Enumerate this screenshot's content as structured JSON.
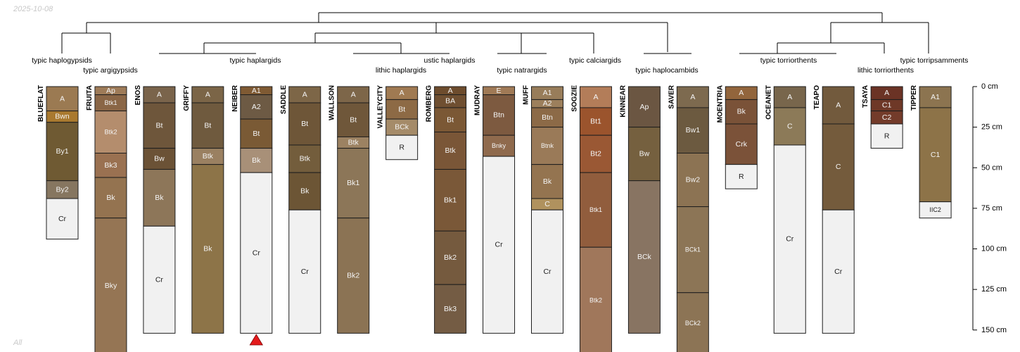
{
  "header": {
    "date": "2025-10-08",
    "footer_label": "All"
  },
  "chart_data": {
    "type": "soil-profile-sketch",
    "depth_unit": "cm",
    "y_ticks": [
      {
        "value": 0,
        "label": "0 cm"
      },
      {
        "value": 25,
        "label": "25 cm"
      },
      {
        "value": 50,
        "label": "50 cm"
      },
      {
        "value": 75,
        "label": "75 cm"
      },
      {
        "value": 100,
        "label": "100 cm"
      },
      {
        "value": 125,
        "label": "125 cm"
      },
      {
        "value": 150,
        "label": "150 cm"
      }
    ],
    "groups": [
      {
        "label": "typic haplogypsids"
      },
      {
        "label": "typic argigypsids"
      },
      {
        "label": "typic haplargids"
      },
      {
        "label": "lithic haplargids"
      },
      {
        "label": "ustic haplargids"
      },
      {
        "label": "typic natrargids"
      },
      {
        "label": "typic calciargids"
      },
      {
        "label": "typic haplocambids"
      },
      {
        "label": "typic torriorthents"
      },
      {
        "label": "lithic torriorthents"
      },
      {
        "label": "typic torripsamments"
      }
    ],
    "profiles": [
      {
        "name": "BLUEFLAT",
        "horizons": [
          {
            "name": "A",
            "top": 0,
            "bottom": 15,
            "color": "#9b7a52"
          },
          {
            "name": "Bwn",
            "top": 15,
            "bottom": 22,
            "color": "#a9792f"
          },
          {
            "name": "By1",
            "top": 22,
            "bottom": 58,
            "color": "#6f5a33"
          },
          {
            "name": "By2",
            "top": 58,
            "bottom": 69,
            "color": "#867660"
          },
          {
            "name": "Cr",
            "top": 69,
            "bottom": 94,
            "color": "#f1f1f1"
          }
        ]
      },
      {
        "name": "FRUITA",
        "horizons": [
          {
            "name": "Ap",
            "top": 0,
            "bottom": 5,
            "color": "#9e7b58"
          },
          {
            "name": "Btk1",
            "top": 5,
            "bottom": 15,
            "color": "#8a6646"
          },
          {
            "name": "Btk2",
            "top": 15,
            "bottom": 41,
            "color": "#b48d6d"
          },
          {
            "name": "Bk3",
            "top": 41,
            "bottom": 56,
            "color": "#9a7151"
          },
          {
            "name": "Bk",
            "top": 56,
            "bottom": 81,
            "color": "#947350"
          },
          {
            "name": "Bky",
            "top": 81,
            "bottom": 165,
            "color": "#957554"
          }
        ]
      },
      {
        "name": "ENOS",
        "horizons": [
          {
            "name": "A",
            "top": 0,
            "bottom": 10,
            "color": "#7a644b"
          },
          {
            "name": "Bt",
            "top": 10,
            "bottom": 38,
            "color": "#6e563b"
          },
          {
            "name": "Bw",
            "top": 38,
            "bottom": 51,
            "color": "#6b5236"
          },
          {
            "name": "Bk",
            "top": 51,
            "bottom": 86,
            "color": "#8d7659"
          },
          {
            "name": "Cr",
            "top": 86,
            "bottom": 152,
            "color": "#f1f1f1"
          }
        ]
      },
      {
        "name": "GRIFFY",
        "horizons": [
          {
            "name": "A",
            "top": 0,
            "bottom": 10,
            "color": "#7b6547"
          },
          {
            "name": "Bt",
            "top": 10,
            "bottom": 38,
            "color": "#6f5a3e"
          },
          {
            "name": "Btk",
            "top": 38,
            "bottom": 48,
            "color": "#9a8061"
          },
          {
            "name": "Bk",
            "top": 48,
            "bottom": 152,
            "color": "#8d7448"
          }
        ]
      },
      {
        "name": "NEIBER",
        "horizons": [
          {
            "name": "A1",
            "top": 0,
            "bottom": 5,
            "color": "#7f5a33"
          },
          {
            "name": "A2",
            "top": 5,
            "bottom": 20,
            "color": "#6d5a44"
          },
          {
            "name": "Bt",
            "top": 20,
            "bottom": 38,
            "color": "#7a5a35"
          },
          {
            "name": "Bk",
            "top": 38,
            "bottom": 53,
            "color": "#a89078"
          },
          {
            "name": "Cr",
            "top": 53,
            "bottom": 152,
            "color": "#f1f1f1"
          }
        ]
      },
      {
        "name": "SADDLE",
        "horizons": [
          {
            "name": "A",
            "top": 0,
            "bottom": 10,
            "color": "#7d6647"
          },
          {
            "name": "Bt",
            "top": 10,
            "bottom": 36,
            "color": "#6e5638"
          },
          {
            "name": "Btk",
            "top": 36,
            "bottom": 53,
            "color": "#735d3c"
          },
          {
            "name": "Bk",
            "top": 53,
            "bottom": 76,
            "color": "#6c5535"
          },
          {
            "name": "Cr",
            "top": 76,
            "bottom": 152,
            "color": "#f1f1f1"
          }
        ]
      },
      {
        "name": "WALLSON",
        "horizons": [
          {
            "name": "A",
            "top": 0,
            "bottom": 10,
            "color": "#7d6649"
          },
          {
            "name": "Bt",
            "top": 10,
            "bottom": 31,
            "color": "#6f573a"
          },
          {
            "name": "Btk",
            "top": 31,
            "bottom": 38,
            "color": "#9c8262"
          },
          {
            "name": "Bk1",
            "top": 38,
            "bottom": 81,
            "color": "#8c7658"
          },
          {
            "name": "Bk2",
            "top": 81,
            "bottom": 152,
            "color": "#8b7354"
          }
        ]
      },
      {
        "name": "VALLEYCITY",
        "horizons": [
          {
            "name": "A",
            "top": 0,
            "bottom": 8,
            "color": "#a07a52"
          },
          {
            "name": "Bt",
            "top": 8,
            "bottom": 20,
            "color": "#8d6a45"
          },
          {
            "name": "BCk",
            "top": 20,
            "bottom": 30,
            "color": "#a58b69"
          },
          {
            "name": "R",
            "top": 30,
            "bottom": 45,
            "color": "#f1f1f1"
          }
        ]
      },
      {
        "name": "ROMBERG",
        "horizons": [
          {
            "name": "A",
            "top": 0,
            "bottom": 5,
            "color": "#6d4c2d"
          },
          {
            "name": "BA",
            "top": 5,
            "bottom": 13,
            "color": "#6f4f31"
          },
          {
            "name": "Bt",
            "top": 13,
            "bottom": 28,
            "color": "#7b5835"
          },
          {
            "name": "Btk",
            "top": 28,
            "bottom": 51,
            "color": "#7a5637"
          },
          {
            "name": "Bk1",
            "top": 51,
            "bottom": 89,
            "color": "#7a5838"
          },
          {
            "name": "Bk2",
            "top": 89,
            "bottom": 122,
            "color": "#755a3e"
          },
          {
            "name": "Bk3",
            "top": 122,
            "bottom": 152,
            "color": "#745c44"
          }
        ]
      },
      {
        "name": "MUDRAY",
        "horizons": [
          {
            "name": "E",
            "top": 0,
            "bottom": 5,
            "color": "#a07a56"
          },
          {
            "name": "Btn",
            "top": 5,
            "bottom": 30,
            "color": "#7d5a40"
          },
          {
            "name": "Bnky",
            "top": 30,
            "bottom": 43,
            "color": "#8f6a4d"
          },
          {
            "name": "Cr",
            "top": 43,
            "bottom": 152,
            "color": "#f1f1f1"
          }
        ]
      },
      {
        "name": "MUFF",
        "horizons": [
          {
            "name": "A1",
            "top": 0,
            "bottom": 8,
            "color": "#987d5a"
          },
          {
            "name": "A2",
            "top": 8,
            "bottom": 13,
            "color": "#9c7f5c"
          },
          {
            "name": "Btn",
            "top": 13,
            "bottom": 25,
            "color": "#8c6a47"
          },
          {
            "name": "Btnk",
            "top": 25,
            "bottom": 48,
            "color": "#9a7a58"
          },
          {
            "name": "Bk",
            "top": 48,
            "bottom": 69,
            "color": "#947450"
          },
          {
            "name": "C",
            "top": 69,
            "bottom": 76,
            "color": "#b0925e"
          },
          {
            "name": "Cr",
            "top": 76,
            "bottom": 152,
            "color": "#f1f1f1"
          }
        ]
      },
      {
        "name": "SOGZIE",
        "horizons": [
          {
            "name": "A",
            "top": 0,
            "bottom": 13,
            "color": "#b37d59"
          },
          {
            "name": "Bt1",
            "top": 13,
            "bottom": 30,
            "color": "#9b542d"
          },
          {
            "name": "Bt2",
            "top": 30,
            "bottom": 53,
            "color": "#9a5834"
          },
          {
            "name": "Btk1",
            "top": 53,
            "bottom": 99,
            "color": "#915d3d"
          },
          {
            "name": "Btk2",
            "top": 99,
            "bottom": 165,
            "color": "#a0775b"
          }
        ]
      },
      {
        "name": "KINNEAR",
        "horizons": [
          {
            "name": "Ap",
            "top": 0,
            "bottom": 25,
            "color": "#6b5642"
          },
          {
            "name": "Bw",
            "top": 25,
            "bottom": 58,
            "color": "#75603f"
          },
          {
            "name": "BCk",
            "top": 58,
            "bottom": 152,
            "color": "#887462"
          }
        ]
      },
      {
        "name": "SAVER",
        "horizons": [
          {
            "name": "A",
            "top": 0,
            "bottom": 13,
            "color": "#7d6a4f"
          },
          {
            "name": "Bw1",
            "top": 13,
            "bottom": 41,
            "color": "#6c5a40"
          },
          {
            "name": "Bw2",
            "top": 41,
            "bottom": 74,
            "color": "#8c7353"
          },
          {
            "name": "BCk1",
            "top": 74,
            "bottom": 127,
            "color": "#8c7556"
          },
          {
            "name": "BCk2",
            "top": 127,
            "bottom": 165,
            "color": "#8c7455"
          }
        ]
      },
      {
        "name": "MOENTRIA",
        "horizons": [
          {
            "name": "A",
            "top": 0,
            "bottom": 8,
            "color": "#92653c"
          },
          {
            "name": "Bk",
            "top": 8,
            "bottom": 23,
            "color": "#7a5238"
          },
          {
            "name": "Crk",
            "top": 23,
            "bottom": 48,
            "color": "#7b5239"
          },
          {
            "name": "R",
            "top": 48,
            "bottom": 63,
            "color": "#f1f1f1"
          }
        ]
      },
      {
        "name": "OCEANET",
        "horizons": [
          {
            "name": "A",
            "top": 0,
            "bottom": 13,
            "color": "#78664c"
          },
          {
            "name": "C",
            "top": 13,
            "bottom": 36,
            "color": "#8c7a58"
          },
          {
            "name": "Cr",
            "top": 36,
            "bottom": 152,
            "color": "#f1f1f1"
          }
        ]
      },
      {
        "name": "TEAPO",
        "horizons": [
          {
            "name": "A",
            "top": 0,
            "bottom": 23,
            "color": "#725a3d"
          },
          {
            "name": "C",
            "top": 23,
            "bottom": 76,
            "color": "#745b3c"
          },
          {
            "name": "Cr",
            "top": 76,
            "bottom": 152,
            "color": "#f1f1f1"
          }
        ]
      },
      {
        "name": "TSAYA",
        "horizons": [
          {
            "name": "A",
            "top": 0,
            "bottom": 8,
            "color": "#6b3325"
          },
          {
            "name": "C1",
            "top": 8,
            "bottom": 15,
            "color": "#6e3827"
          },
          {
            "name": "C2",
            "top": 15,
            "bottom": 23,
            "color": "#733b2a"
          },
          {
            "name": "R",
            "top": 23,
            "bottom": 38,
            "color": "#f1f1f1"
          }
        ]
      },
      {
        "name": "TIPPER",
        "horizons": [
          {
            "name": "A1",
            "top": 0,
            "bottom": 13,
            "color": "#8c7450"
          },
          {
            "name": "C1",
            "top": 13,
            "bottom": 71,
            "color": "#8d7348"
          },
          {
            "name": "IIC2",
            "top": 71,
            "bottom": 81,
            "color": "#f1f1f1"
          }
        ]
      }
    ]
  }
}
